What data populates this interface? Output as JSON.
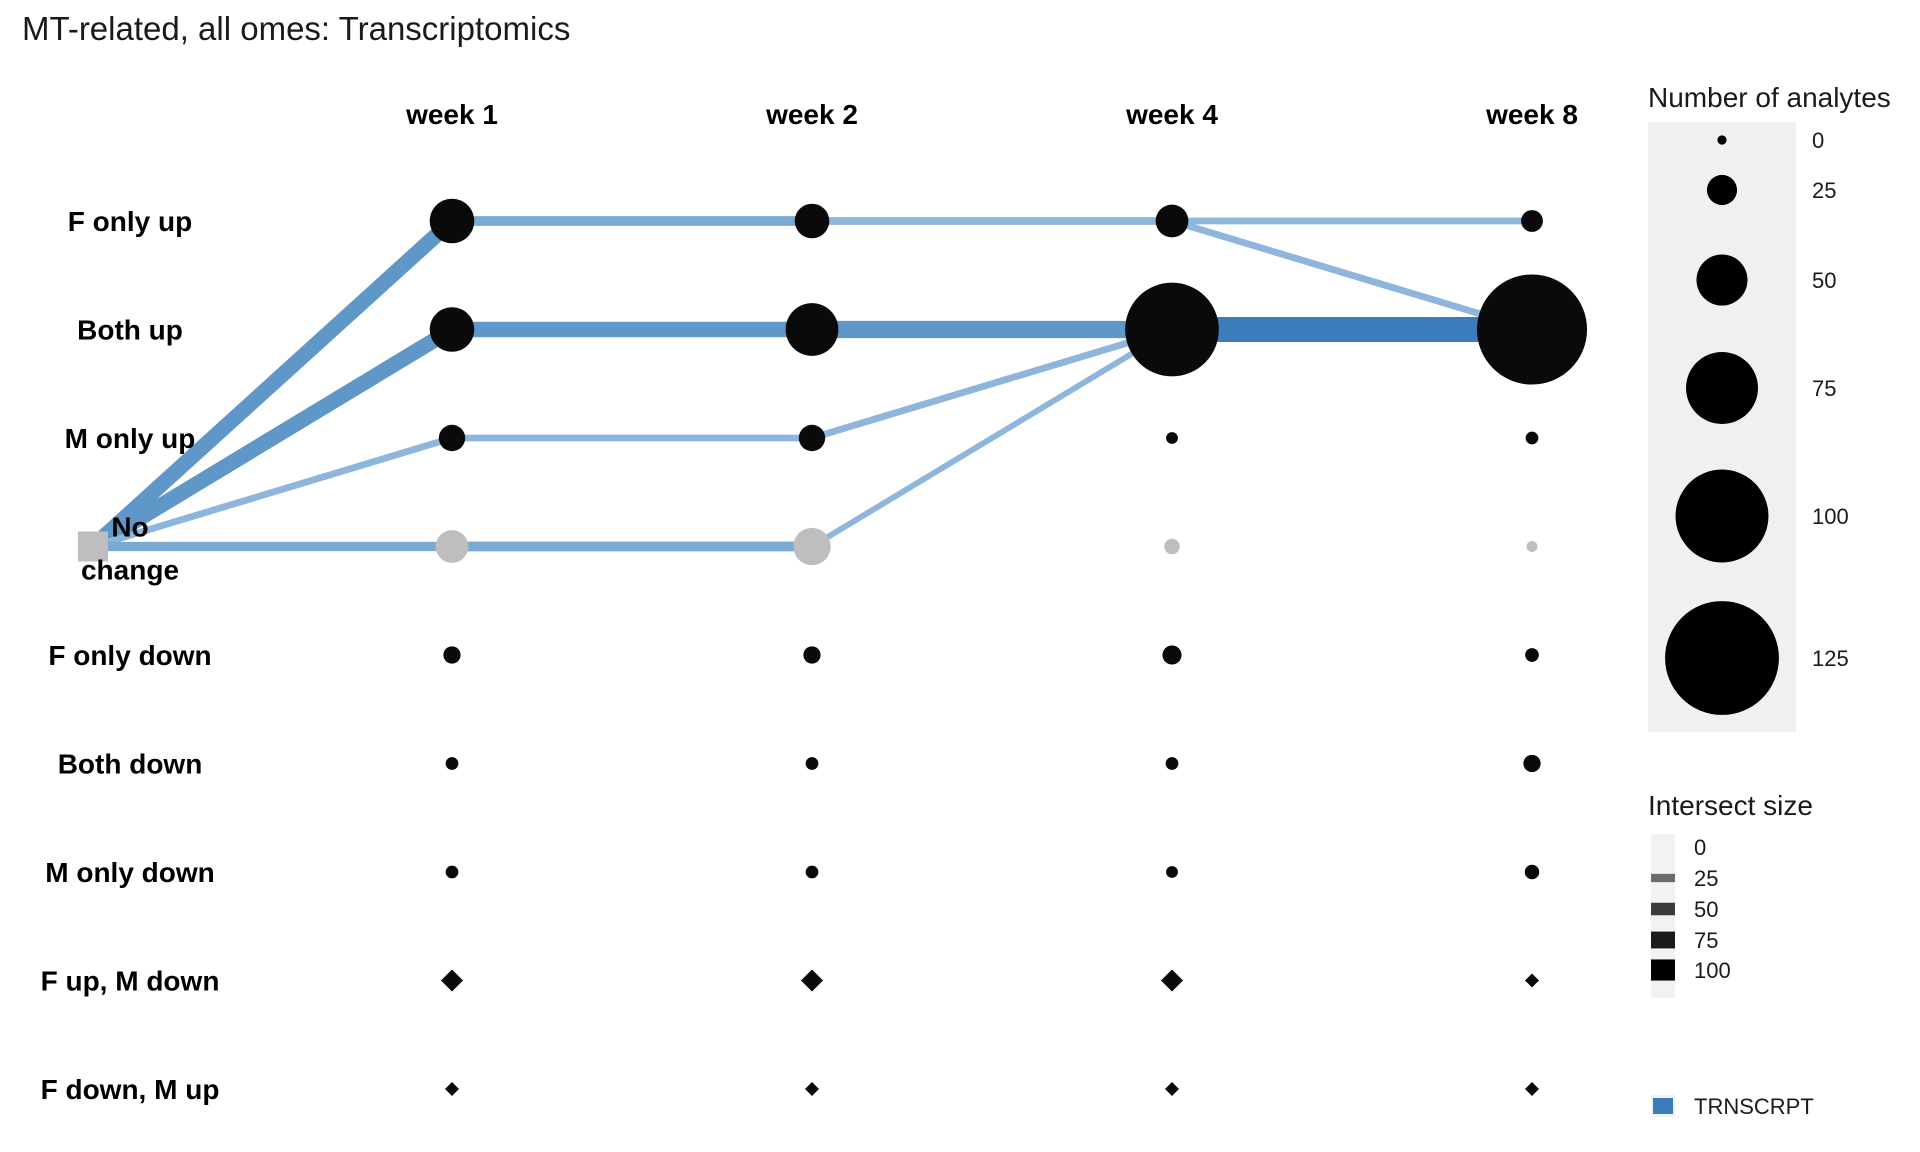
{
  "chart_data": {
    "type": "bubble-flow",
    "title": "MT-related, all omes: Transcriptomics",
    "columns": [
      "week 1",
      "week 2",
      "week 4",
      "week 8"
    ],
    "rows": [
      {
        "label": "F only up"
      },
      {
        "label": "Both up"
      },
      {
        "label": "M only up"
      },
      {
        "label": "No change",
        "lines": [
          "No",
          "change"
        ]
      },
      {
        "label": "F only down"
      },
      {
        "label": "Both down"
      },
      {
        "label": "M only down"
      },
      {
        "label": "F up, M down"
      },
      {
        "label": "F down, M up"
      }
    ],
    "shapes": [
      "circle",
      "circle",
      "circle",
      "circle",
      "circle",
      "circle",
      "circle",
      "diamond",
      "diamond"
    ],
    "origin": {
      "row": 3,
      "color": "#bebebe"
    },
    "node_colors": {
      "default": "#0a0a0a",
      "no_change": "#bebebe"
    },
    "counts": [
      [
        38,
        27,
        25,
        13
      ],
      [
        38,
        47,
        92,
        110
      ],
      [
        18,
        18,
        2,
        3
      ],
      [
        25,
        30,
        6,
        1
      ],
      [
        8,
        8,
        10,
        4
      ],
      [
        3,
        3,
        3,
        8
      ],
      [
        3,
        3,
        2,
        5
      ],
      [
        3,
        3,
        3,
        0
      ],
      [
        0,
        0,
        0,
        0
      ]
    ],
    "flows": [
      {
        "from": [
          -1,
          3
        ],
        "to": [
          0,
          0
        ],
        "size": 60
      },
      {
        "from": [
          -1,
          3
        ],
        "to": [
          0,
          1
        ],
        "size": 60
      },
      {
        "from": [
          -1,
          3
        ],
        "to": [
          0,
          2
        ],
        "size": 15
      },
      {
        "from": [
          -1,
          3
        ],
        "to": [
          0,
          3
        ],
        "size": 28
      },
      {
        "from": [
          0,
          0
        ],
        "to": [
          1,
          0
        ],
        "size": 30
      },
      {
        "from": [
          0,
          1
        ],
        "to": [
          1,
          1
        ],
        "size": 60
      },
      {
        "from": [
          0,
          2
        ],
        "to": [
          1,
          2
        ],
        "size": 15
      },
      {
        "from": [
          0,
          3
        ],
        "to": [
          1,
          3
        ],
        "size": 30
      },
      {
        "from": [
          1,
          0
        ],
        "to": [
          2,
          0
        ],
        "size": 20
      },
      {
        "from": [
          1,
          1
        ],
        "to": [
          2,
          1
        ],
        "size": 70
      },
      {
        "from": [
          1,
          2
        ],
        "to": [
          2,
          1
        ],
        "size": 15
      },
      {
        "from": [
          1,
          3
        ],
        "to": [
          2,
          1
        ],
        "size": 10
      },
      {
        "from": [
          2,
          0
        ],
        "to": [
          3,
          0
        ],
        "size": 15
      },
      {
        "from": [
          2,
          0
        ],
        "to": [
          3,
          1
        ],
        "size": 15
      },
      {
        "from": [
          2,
          1
        ],
        "to": [
          3,
          1
        ],
        "size": 110
      }
    ],
    "legend_size": {
      "title": "Number of analytes",
      "values": [
        0,
        25,
        50,
        75,
        100,
        125
      ],
      "labels": [
        "0",
        "25",
        "50",
        "75",
        "100",
        "125"
      ]
    },
    "legend_intersect": {
      "title": "Intersect size",
      "values": [
        0,
        25,
        50,
        75,
        100
      ],
      "labels": [
        "0",
        "25",
        "50",
        "75",
        "100"
      ]
    },
    "legend_ome": {
      "label": "TRNSCRPT",
      "color": "#3a7dba"
    }
  }
}
